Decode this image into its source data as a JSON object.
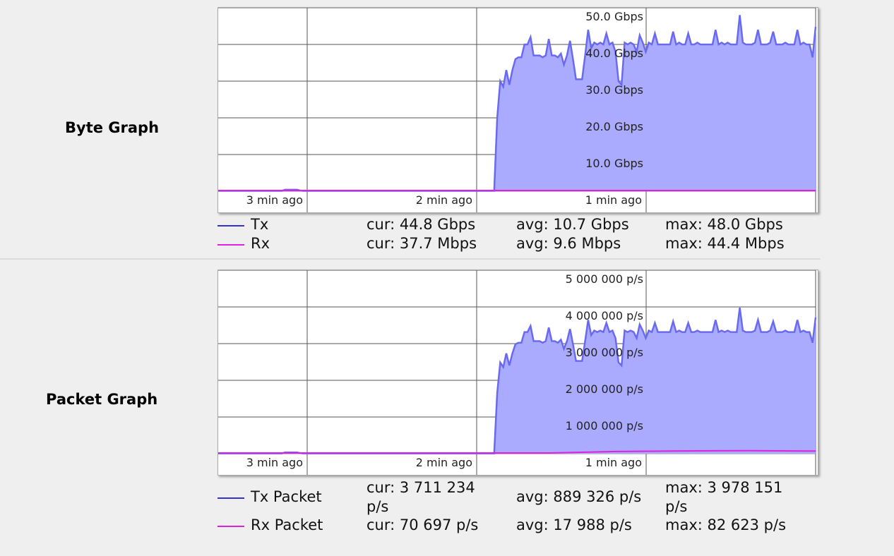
{
  "byte_graph": {
    "section_label": "Byte Graph",
    "y_ticks": [
      "50.0 Gbps",
      "40.0 Gbps",
      "30.0 Gbps",
      "20.0 Gbps",
      "10.0 Gbps"
    ],
    "x_ticks": [
      "3 min ago",
      "2 min ago",
      "1 min ago"
    ],
    "legend": [
      {
        "name": "Tx",
        "color": "#3333cc",
        "cur": "cur: 44.8 Gbps",
        "avg": "avg: 10.7 Gbps",
        "max": "max: 48.0 Gbps"
      },
      {
        "name": "Rx",
        "color": "#e020e0",
        "cur": "cur: 37.7 Mbps",
        "avg": "avg: 9.6 Mbps",
        "max": "max: 44.4 Mbps"
      }
    ]
  },
  "packet_graph": {
    "section_label": "Packet Graph",
    "y_ticks": [
      "5 000 000 p/s",
      "4 000 000 p/s",
      "3 000 000 p/s",
      "2 000 000 p/s",
      "1 000 000 p/s"
    ],
    "x_ticks": [
      "3 min ago",
      "2 min ago",
      "1 min ago"
    ],
    "legend": [
      {
        "name": "Tx Packet",
        "color": "#3333cc",
        "cur": "cur: 3 711 234 p/s",
        "avg": "avg: 889 326 p/s",
        "max": "max: 3 978 151 p/s"
      },
      {
        "name": "Rx Packet",
        "color": "#e020e0",
        "cur": "cur: 70 697 p/s",
        "avg": "avg: 17 988 p/s",
        "max": "max: 82 623 p/s"
      }
    ]
  },
  "chart_data": [
    {
      "type": "area",
      "title": "",
      "xlabel": "",
      "ylabel": "",
      "ylim": [
        0,
        50
      ],
      "x_tick_labels": [
        "3 min ago",
        "2 min ago",
        "1 min ago"
      ],
      "y_unit": "Gbps",
      "grid": true,
      "legend_position": "bottom",
      "series": [
        {
          "name": "Tx",
          "color": "#6a6af0",
          "fill": "#aaaaff",
          "values": [
            0.1,
            0.1,
            0.1,
            0.1,
            0.1,
            0.1,
            0.1,
            0.1,
            0.1,
            0.1,
            0.1,
            0.1,
            0.1,
            0.1,
            0.1,
            0.1,
            0.1,
            0.1,
            0.1,
            0.1,
            0.1,
            0.1,
            0.4,
            0.4,
            0.4,
            0.4,
            0.4,
            0.2,
            0.1,
            0.1,
            0.1,
            0.1,
            0.1,
            0.1,
            0.1,
            0.1,
            0.1,
            0.1,
            0.1,
            0.1,
            0.1,
            0.1,
            0.1,
            0.1,
            0.1,
            0.1,
            0.1,
            0.1,
            0.1,
            0.1,
            0.1,
            0.1,
            0.1,
            0.1,
            0.1,
            0.1,
            0.1,
            0.1,
            0.1,
            0.1,
            0.1,
            0.1,
            0.1,
            0.1,
            0.1,
            0.1,
            0.1,
            0.1,
            0.1,
            0.1,
            0.1,
            0.1,
            0.1,
            0.1,
            0.1,
            0.1,
            0.1,
            0.1,
            0.1,
            0.1,
            0.1,
            0.1,
            0.1,
            0.1,
            0.1,
            0.1,
            0.1,
            0.1,
            0.1,
            0.1,
            0.1,
            0.1,
            20.0,
            30.0,
            28.5,
            33.0,
            29.0,
            33.0,
            36.0,
            36.5,
            36.5,
            40.0,
            40.0,
            42.0,
            37.0,
            37.0,
            37.0,
            36.5,
            37.0,
            41.5,
            37.0,
            37.0,
            36.5,
            37.5,
            34.5,
            37.0,
            41.0,
            36.0,
            30.5,
            30.5,
            30.5,
            37.0,
            44.0,
            39.0,
            40.5,
            40.0,
            40.5,
            40.0,
            43.0,
            40.0,
            40.5,
            38.0,
            30.0,
            29.0,
            40.5,
            40.0,
            40.5,
            40.0,
            38.0,
            42.5,
            40.5,
            38.0,
            40.5,
            40.0,
            43.0,
            40.0,
            40.0,
            40.0,
            40.0,
            40.0,
            43.5,
            40.0,
            40.5,
            40.0,
            40.0,
            43.0,
            40.0,
            40.0,
            40.5,
            40.0,
            40.0,
            40.0,
            40.0,
            40.0,
            44.0,
            40.0,
            40.5,
            40.0,
            40.5,
            40.0,
            40.0,
            40.0,
            48.0,
            40.5,
            40.0,
            40.0,
            40.0,
            40.5,
            44.0,
            40.0,
            40.0,
            40.0,
            40.5,
            43.5,
            40.0,
            40.0,
            40.0,
            40.5,
            40.0,
            40.0,
            40.0,
            44.0,
            40.0,
            40.5,
            40.0,
            40.0,
            36.5,
            44.8
          ]
        },
        {
          "name": "Rx",
          "color": "#e020e0",
          "values": [
            0.04,
            0.04,
            0.04,
            0.04,
            0.04,
            0.04,
            0.04,
            0.04,
            0.04,
            0.04
          ]
        }
      ]
    },
    {
      "type": "area",
      "title": "",
      "xlabel": "",
      "ylabel": "",
      "ylim": [
        0,
        5000000
      ],
      "x_tick_labels": [
        "3 min ago",
        "2 min ago",
        "1 min ago"
      ],
      "y_unit": "p/s",
      "grid": true,
      "legend_position": "bottom",
      "series": [
        {
          "name": "Tx Packet",
          "color": "#6a6af0",
          "fill": "#aaaaff",
          "values_scale_of": "byte",
          "scale": 82880
        },
        {
          "name": "Rx Packet",
          "color": "#e020e0",
          "values": [
            10000,
            10000,
            10000,
            10000,
            10000,
            10000,
            60000,
            75000,
            82623,
            70697
          ]
        }
      ]
    }
  ]
}
